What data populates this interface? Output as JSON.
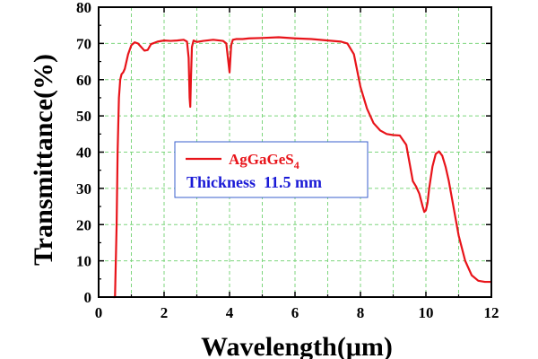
{
  "chart_data": {
    "type": "line",
    "title": "",
    "xlabel": "Wavelength(μm)",
    "ylabel": "Transmittance(%)",
    "xlim": [
      0,
      12
    ],
    "ylim": [
      0,
      80
    ],
    "xticks": [
      0,
      2,
      4,
      6,
      8,
      10,
      12
    ],
    "yticks": [
      0,
      10,
      20,
      30,
      40,
      50,
      60,
      70,
      80
    ],
    "grid": true,
    "grid_style": "dashed",
    "grid_color": "#7ed67e",
    "legend_position": "center-left",
    "series": [
      {
        "name": "AgGaGeS4",
        "color": "#e8141a",
        "x": [
          0.45,
          0.5,
          0.55,
          0.58,
          0.62,
          0.66,
          0.7,
          0.75,
          0.8,
          0.9,
          1.0,
          1.1,
          1.2,
          1.3,
          1.4,
          1.5,
          1.6,
          1.8,
          2.0,
          2.2,
          2.4,
          2.6,
          2.7,
          2.75,
          2.78,
          2.8,
          2.82,
          2.85,
          2.9,
          3.0,
          3.2,
          3.5,
          3.8,
          3.9,
          3.95,
          4.0,
          4.05,
          4.1,
          4.2,
          4.4,
          4.6,
          5.0,
          5.5,
          6.0,
          6.5,
          7.0,
          7.4,
          7.6,
          7.8,
          8.0,
          8.2,
          8.4,
          8.6,
          8.8,
          9.0,
          9.2,
          9.4,
          9.5,
          9.6,
          9.7,
          9.8,
          9.9,
          9.95,
          10.0,
          10.05,
          10.1,
          10.2,
          10.3,
          10.4,
          10.5,
          10.6,
          10.7,
          10.8,
          10.9,
          11.0,
          11.2,
          11.4,
          11.6,
          11.8,
          12.0
        ],
        "y": [
          0.0,
          0.0,
          20.0,
          40.0,
          55.0,
          60.0,
          61.5,
          62.0,
          63.0,
          67.0,
          69.5,
          70.3,
          70.0,
          69.0,
          68.0,
          68.2,
          69.8,
          70.5,
          70.8,
          70.7,
          70.8,
          71.0,
          70.5,
          66.0,
          55.0,
          52.5,
          60.0,
          69.0,
          70.8,
          70.4,
          70.7,
          71.0,
          70.7,
          70.0,
          66.0,
          62.0,
          69.5,
          71.0,
          71.2,
          71.2,
          71.4,
          71.5,
          71.7,
          71.4,
          71.2,
          70.8,
          70.5,
          70.0,
          67.0,
          58.0,
          52.0,
          48.0,
          46.0,
          45.0,
          44.7,
          44.6,
          42.0,
          37.0,
          32.0,
          30.5,
          28.5,
          25.0,
          23.5,
          24.0,
          26.0,
          30.0,
          36.0,
          39.5,
          40.2,
          39.0,
          36.0,
          32.0,
          27.0,
          22.0,
          17.0,
          10.0,
          6.0,
          4.5,
          4.2,
          4.2
        ]
      }
    ],
    "legend_entries": [
      {
        "label_base": "AgGaGeS",
        "label_subscript": "4",
        "color": "#e8141a"
      }
    ],
    "annotations": [
      {
        "text": "Thickness  11.5 mm",
        "color": "#1a1ad6"
      }
    ]
  }
}
